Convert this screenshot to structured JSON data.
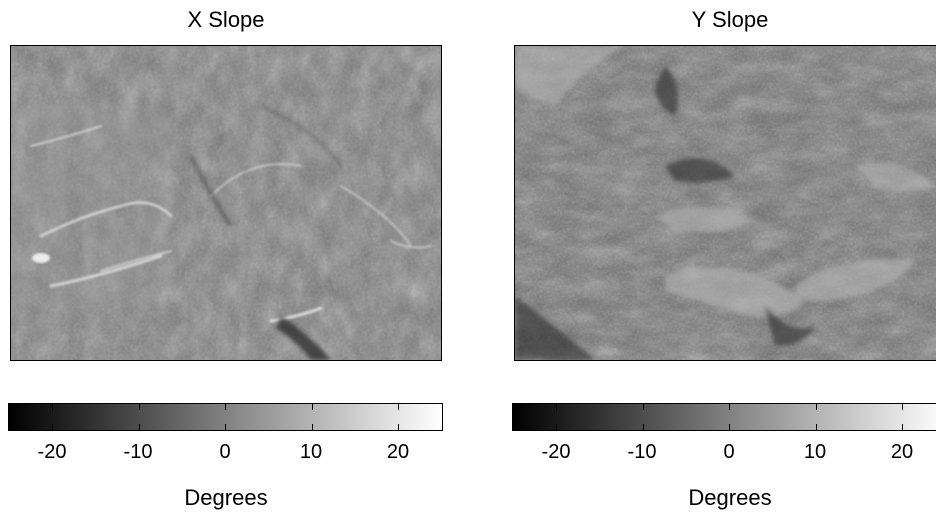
{
  "panels": [
    {
      "title": "X Slope",
      "colorbar": {
        "ticks": [
          "-20",
          "-10",
          "0",
          "10",
          "20"
        ],
        "label": "Degrees",
        "range": [
          -25,
          25
        ]
      }
    },
    {
      "title": "Y Slope",
      "colorbar": {
        "ticks": [
          "-20",
          "-10",
          "0",
          "10",
          "20"
        ],
        "label": "Degrees",
        "range": [
          -25,
          25
        ]
      }
    }
  ],
  "colors": {
    "colormap_low": "#000000",
    "colormap_high": "#ffffff",
    "frame": "#000000"
  }
}
